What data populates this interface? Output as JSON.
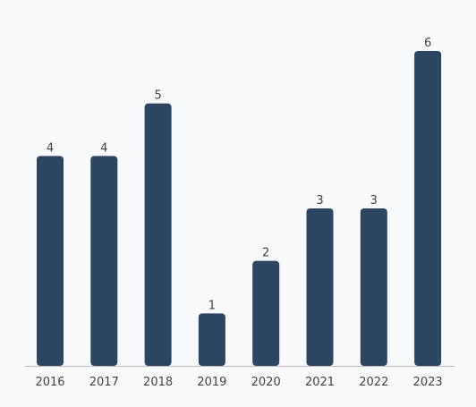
{
  "chart_data": {
    "type": "bar",
    "categories": [
      "2016",
      "2017",
      "2018",
      "2019",
      "2020",
      "2021",
      "2022",
      "2023"
    ],
    "values": [
      4,
      4,
      5,
      1,
      2,
      3,
      3,
      6
    ],
    "color": "#2c4662"
  }
}
